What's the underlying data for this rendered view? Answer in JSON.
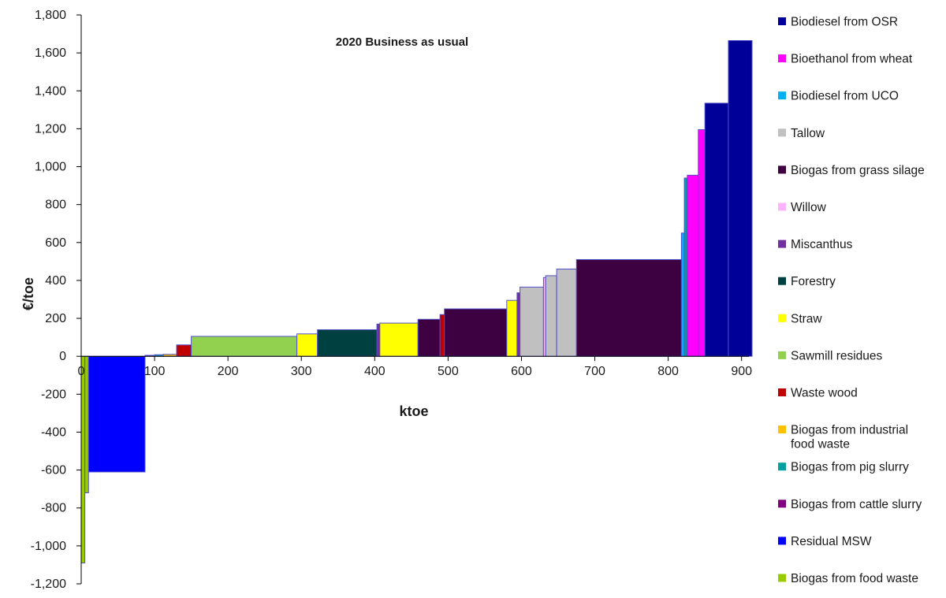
{
  "chart_data": {
    "type": "bar",
    "subtype": "cost-supply-curve (variable-width bars)",
    "title": "2020 Business as usual",
    "xlabel": "ktoe",
    "ylabel": "€/toe",
    "xlim": [
      0,
      910
    ],
    "ylim": [
      -1200,
      1800
    ],
    "x_ticks": [
      "0",
      "100",
      "200",
      "300",
      "400",
      "500",
      "600",
      "700",
      "800",
      "900"
    ],
    "y_ticks": [
      "-1,200",
      "-1,000",
      "-800",
      "-600",
      "-400",
      "-200",
      "0",
      "200",
      "400",
      "600",
      "800",
      "1,000",
      "1,200",
      "1,400",
      "1,600",
      "1,800"
    ],
    "grid": false,
    "legend_position": "right",
    "legend": [
      {
        "name": "Biodiesel from OSR",
        "color": "#000099"
      },
      {
        "name": "Bioethanol from wheat",
        "color": "#ff00ff"
      },
      {
        "name": "Biodiesel from UCO",
        "color": "#00b0f0"
      },
      {
        "name": "Tallow",
        "color": "#c0c0c0"
      },
      {
        "name": "Biogas from grass silage",
        "color": "#3d0040"
      },
      {
        "name": "Willow",
        "color": "#ffb3ff"
      },
      {
        "name": "Miscanthus",
        "color": "#7030a0"
      },
      {
        "name": "Forestry",
        "color": "#004040"
      },
      {
        "name": "Straw",
        "color": "#ffff00"
      },
      {
        "name": "Sawmill residues",
        "color": "#92d050"
      },
      {
        "name": "Waste wood",
        "color": "#c00000"
      },
      {
        "name": "Biogas from industrial food waste",
        "color": "#ffc000"
      },
      {
        "name": "Biogas from pig slurry",
        "color": "#00a0a0"
      },
      {
        "name": "Biogas from cattle slurry",
        "color": "#800080"
      },
      {
        "name": "Residual MSW",
        "color": "#0000ff"
      },
      {
        "name": "Biogas from food waste",
        "color": "#99cc00"
      }
    ],
    "segments": [
      {
        "source": "Biogas from food waste",
        "x_start": 0,
        "x_end": 5,
        "value": -1090
      },
      {
        "source": "Biogas from food waste",
        "x_start": 5,
        "x_end": 10,
        "value": -720
      },
      {
        "source": "Residual MSW",
        "x_start": 10,
        "x_end": 87,
        "value": -610
      },
      {
        "source": "Biogas from cattle slurry",
        "x_start": 87,
        "x_end": 100,
        "value": 5
      },
      {
        "source": "Biogas from pig slurry",
        "x_start": 100,
        "x_end": 112,
        "value": 8
      },
      {
        "source": "Biogas from industrial food waste",
        "x_start": 112,
        "x_end": 130,
        "value": 10
      },
      {
        "source": "Waste wood",
        "x_start": 130,
        "x_end": 150,
        "value": 60
      },
      {
        "source": "Sawmill residues",
        "x_start": 150,
        "x_end": 294,
        "value": 105
      },
      {
        "source": "Straw",
        "x_start": 294,
        "x_end": 322,
        "value": 118
      },
      {
        "source": "Forestry",
        "x_start": 322,
        "x_end": 403,
        "value": 140
      },
      {
        "source": "Miscanthus",
        "x_start": 403,
        "x_end": 407,
        "value": 170
      },
      {
        "source": "Straw",
        "x_start": 407,
        "x_end": 459,
        "value": 175
      },
      {
        "source": "Biogas from grass silage",
        "x_start": 459,
        "x_end": 489,
        "value": 195
      },
      {
        "source": "Waste wood",
        "x_start": 489,
        "x_end": 495,
        "value": 220
      },
      {
        "source": "Biogas from grass silage",
        "x_start": 495,
        "x_end": 580,
        "value": 250
      },
      {
        "source": "Straw",
        "x_start": 580,
        "x_end": 594,
        "value": 295
      },
      {
        "source": "Miscanthus",
        "x_start": 594,
        "x_end": 598,
        "value": 335
      },
      {
        "source": "Tallow",
        "x_start": 598,
        "x_end": 630,
        "value": 365
      },
      {
        "source": "Willow",
        "x_start": 630,
        "x_end": 633,
        "value": 415
      },
      {
        "source": "Tallow",
        "x_start": 633,
        "x_end": 648,
        "value": 425
      },
      {
        "source": "Tallow",
        "x_start": 648,
        "x_end": 675,
        "value": 460
      },
      {
        "source": "Biogas from grass silage",
        "x_start": 675,
        "x_end": 818,
        "value": 510
      },
      {
        "source": "Biodiesel from UCO",
        "x_start": 818,
        "x_end": 822,
        "value": 650
      },
      {
        "source": "Biogas from pig slurry",
        "x_start": 822,
        "x_end": 826,
        "value": 940
      },
      {
        "source": "Bioethanol from wheat",
        "x_start": 826,
        "x_end": 841,
        "value": 955
      },
      {
        "source": "Bioethanol from wheat",
        "x_start": 841,
        "x_end": 850,
        "value": 1195
      },
      {
        "source": "Biodiesel from OSR",
        "x_start": 850,
        "x_end": 882,
        "value": 1335
      },
      {
        "source": "Biodiesel from OSR",
        "x_start": 882,
        "x_end": 928,
        "value": 1665
      }
    ]
  }
}
